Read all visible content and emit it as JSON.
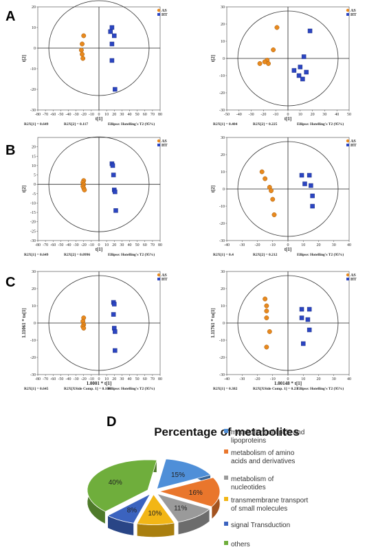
{
  "panel_letters": [
    "A",
    "B",
    "C",
    "D"
  ],
  "scatter_panels": [
    {
      "id": "A-left",
      "row": 0,
      "col": 0,
      "xlim": [
        -80,
        80
      ],
      "ylim": [
        -30,
        20
      ],
      "xticks": [
        -80,
        -70,
        -60,
        -50,
        -40,
        -30,
        -20,
        -10,
        0,
        10,
        20,
        30,
        40,
        50,
        60,
        70,
        80
      ],
      "yticks": [
        -30,
        -20,
        -10,
        0,
        10,
        20
      ],
      "xlabel": "t[1]",
      "ylabel": "t[2]",
      "legend": [
        "AS",
        "HT"
      ],
      "footer": [
        "R2X[1] = 0.649",
        "R2X[2] = 0.117",
        "Ellipse: Hotelling's T2 (95%)"
      ]
    },
    {
      "id": "A-right",
      "row": 0,
      "col": 1,
      "xlim": [
        -50,
        50
      ],
      "ylim": [
        -30,
        30
      ],
      "xticks": [
        -50,
        -40,
        -30,
        -20,
        -10,
        0,
        10,
        20,
        30,
        40,
        50
      ],
      "yticks": [
        -30,
        -20,
        -10,
        0,
        10,
        20,
        30
      ],
      "xlabel": "t[1]",
      "ylabel": "t[2]",
      "legend": [
        "AS",
        "HT"
      ],
      "footer": [
        "R2X[1] = 0.404",
        "R2X[2] = 0.225",
        "Ellipse: Hotelling's T2 (95%)"
      ]
    },
    {
      "id": "B-left",
      "row": 1,
      "col": 0,
      "xlim": [
        -80,
        80
      ],
      "ylim": [
        -30,
        25
      ],
      "xticks": [
        -80,
        -70,
        -60,
        -50,
        -40,
        -30,
        -20,
        -10,
        0,
        10,
        20,
        30,
        40,
        50,
        60,
        70,
        80
      ],
      "yticks": [
        -30,
        -25,
        -20,
        -15,
        -10,
        -5,
        0,
        5,
        10,
        15,
        20
      ],
      "xlabel": "t[1]",
      "ylabel": "t[2]",
      "legend": [
        "AS",
        "HT"
      ],
      "footer": [
        "R2X[1] = 0.649",
        "R2X[2] = 0.0996",
        "Ellipse: Hotelling's T2 (95%)"
      ]
    },
    {
      "id": "B-right",
      "row": 1,
      "col": 1,
      "xlim": [
        -40,
        40
      ],
      "ylim": [
        -30,
        30
      ],
      "xticks": [
        -40,
        -30,
        -20,
        -10,
        0,
        10,
        20,
        30,
        40
      ],
      "yticks": [
        -30,
        -20,
        -10,
        0,
        10,
        20,
        30
      ],
      "xlabel": "t[1]",
      "ylabel": "t[2]",
      "legend": [
        "AS",
        "HT"
      ],
      "footer": [
        "R2X[1] = 0.4",
        "R2X[2] = 0.212",
        "Ellipse: Hotelling's T2 (95%)"
      ]
    },
    {
      "id": "C-left",
      "row": 2,
      "col": 0,
      "xlim": [
        -80,
        80
      ],
      "ylim": [
        -30,
        30
      ],
      "xticks": [
        -80,
        -70,
        -60,
        -50,
        -40,
        -30,
        -20,
        -10,
        0,
        10,
        20,
        30,
        40,
        50,
        60,
        70,
        80
      ],
      "yticks": [
        -30,
        -20,
        -10,
        0,
        10,
        20,
        30
      ],
      "xlabel": "1.0001 * t[1]",
      "ylabel": "1.11061 * to[1]",
      "legend": [
        "AS",
        "HT"
      ],
      "footer": [
        "R2X[1] = 0.645",
        "R2X[XSide Comp. 1] = 0.104",
        "Ellipse: Hotelling's T2 (95%)"
      ]
    },
    {
      "id": "C-right",
      "row": 2,
      "col": 1,
      "xlim": [
        -40,
        40
      ],
      "ylim": [
        -30,
        30
      ],
      "xticks": [
        -40,
        -30,
        -20,
        -10,
        0,
        10,
        20,
        30,
        40
      ],
      "yticks": [
        -30,
        -20,
        -10,
        0,
        10,
        20,
        30
      ],
      "xlabel": "1.00148 * t[1]",
      "ylabel": "1.11761 * to[1]",
      "legend": [
        "AS",
        "HT"
      ],
      "footer": [
        "R2X[1] = 0.382",
        "R2X[XSide Comp. 1] = 0.23",
        "Ellipse: Hotelling's T2 (95%)"
      ]
    }
  ],
  "chart_data": [
    {
      "type": "scatter",
      "panel": "A-left",
      "series": [
        {
          "name": "AS",
          "color": "#e8891e",
          "points": [
            [
              -20,
              6
            ],
            [
              -22,
              2
            ],
            [
              -23,
              -1
            ],
            [
              -22,
              -3
            ],
            [
              -21,
              -5
            ]
          ]
        },
        {
          "name": "HT",
          "color": "#2b45c2",
          "points": [
            [
              17,
              10
            ],
            [
              15,
              8
            ],
            [
              20,
              6
            ],
            [
              17,
              2
            ],
            [
              17,
              -6
            ],
            [
              21,
              -20
            ]
          ]
        }
      ]
    },
    {
      "type": "scatter",
      "panel": "A-right",
      "series": [
        {
          "name": "AS",
          "color": "#e8891e",
          "points": [
            [
              -9,
              18
            ],
            [
              -12,
              5
            ],
            [
              -17,
              -1
            ],
            [
              -16,
              -3
            ],
            [
              -19,
              -2
            ],
            [
              -23,
              -3
            ]
          ]
        },
        {
          "name": "HT",
          "color": "#2b45c2",
          "points": [
            [
              18,
              16
            ],
            [
              13,
              1
            ],
            [
              5,
              -7
            ],
            [
              10,
              -5
            ],
            [
              9,
              -10
            ],
            [
              12,
              -12
            ],
            [
              15,
              -8
            ]
          ]
        }
      ]
    },
    {
      "type": "scatter",
      "panel": "B-left",
      "series": [
        {
          "name": "AS",
          "color": "#e8891e",
          "points": [
            [
              -20,
              2
            ],
            [
              -21,
              1
            ],
            [
              -20,
              0
            ],
            [
              -21,
              -1
            ],
            [
              -20,
              -2
            ],
            [
              -19,
              -3
            ]
          ]
        },
        {
          "name": "HT",
          "color": "#2b45c2",
          "points": [
            [
              17,
              11
            ],
            [
              18,
              10
            ],
            [
              19,
              5
            ],
            [
              20,
              -3
            ],
            [
              21,
              -4
            ],
            [
              22,
              -14
            ]
          ]
        }
      ]
    },
    {
      "type": "scatter",
      "panel": "B-right",
      "series": [
        {
          "name": "AS",
          "color": "#e8891e",
          "points": [
            [
              -17,
              10
            ],
            [
              -15,
              6
            ],
            [
              -12,
              1
            ],
            [
              -11,
              -1
            ],
            [
              -10,
              -6
            ],
            [
              -9,
              -15
            ]
          ]
        },
        {
          "name": "HT",
          "color": "#2b45c2",
          "points": [
            [
              9,
              8
            ],
            [
              14,
              8
            ],
            [
              11,
              3
            ],
            [
              15,
              2
            ],
            [
              16,
              -4
            ],
            [
              16,
              -10
            ]
          ]
        }
      ]
    },
    {
      "type": "scatter",
      "panel": "C-left",
      "series": [
        {
          "name": "AS",
          "color": "#e8891e",
          "points": [
            [
              -20,
              3
            ],
            [
              -21,
              1
            ],
            [
              -20,
              -1
            ],
            [
              -21,
              -2
            ],
            [
              -20,
              -3
            ]
          ]
        },
        {
          "name": "HT",
          "color": "#2b45c2",
          "points": [
            [
              19,
              12
            ],
            [
              20,
              11
            ],
            [
              19,
              5
            ],
            [
              20,
              -3
            ],
            [
              21,
              -5
            ],
            [
              21,
              -16
            ]
          ]
        }
      ]
    },
    {
      "type": "scatter",
      "panel": "C-right",
      "series": [
        {
          "name": "AS",
          "color": "#e8891e",
          "points": [
            [
              -15,
              14
            ],
            [
              -14,
              10
            ],
            [
              -14,
              7
            ],
            [
              -14,
              3
            ],
            [
              -12,
              -5
            ],
            [
              -14,
              -14
            ]
          ]
        },
        {
          "name": "HT",
          "color": "#2b45c2",
          "points": [
            [
              9,
              8
            ],
            [
              14,
              8
            ],
            [
              9,
              3
            ],
            [
              13,
              2
            ],
            [
              14,
              -4
            ],
            [
              10,
              -12
            ]
          ]
        }
      ]
    },
    {
      "type": "pie",
      "panel": "D",
      "title": "Percentage of metabolites",
      "slices": [
        {
          "label": "metabolism of lipids and lipoproteins",
          "value": 15,
          "text": "15%",
          "color": "#4f8fd8"
        },
        {
          "label": "metabolism of amino acids and derivatives",
          "value": 16,
          "text": "16%",
          "color": "#e9762c"
        },
        {
          "label": "metabolism of nucleotides",
          "value": 11,
          "text": "11%",
          "color": "#9a9a9a"
        },
        {
          "label": "transmembrane transport of small molecules",
          "value": 10,
          "text": "10%",
          "color": "#f2b616"
        },
        {
          "label": "signal Transduction",
          "value": 8,
          "text": "8%",
          "color": "#3b63bf"
        },
        {
          "label": "others",
          "value": 40,
          "text": "40%",
          "color": "#6fae3c"
        }
      ],
      "legend": [
        "metabolism of lipids and\nlipoproteins",
        "metabolism of amino\nacids and derivatives",
        "metabolism of\nnucleotides",
        "transmembrane transport\nof small molecules",
        "signal Transduction",
        "others"
      ]
    }
  ]
}
